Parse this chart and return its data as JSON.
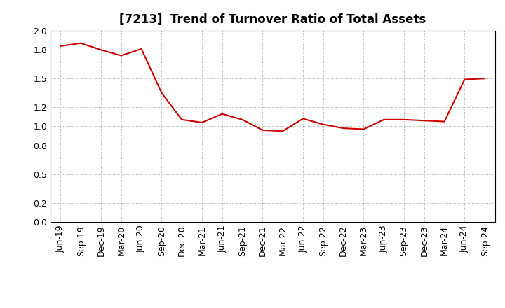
{
  "title": "[7213]  Trend of Turnover Ratio of Total Assets",
  "x_labels": [
    "Jun-19",
    "Sep-19",
    "Dec-19",
    "Mar-20",
    "Jun-20",
    "Sep-20",
    "Dec-20",
    "Mar-21",
    "Jun-21",
    "Sep-21",
    "Dec-21",
    "Mar-22",
    "Jun-22",
    "Sep-22",
    "Dec-22",
    "Mar-23",
    "Jun-23",
    "Sep-23",
    "Dec-23",
    "Mar-24",
    "Jun-24",
    "Sep-24"
  ],
  "y_values": [
    1.84,
    1.87,
    1.8,
    1.74,
    1.81,
    1.35,
    1.07,
    1.04,
    1.13,
    1.07,
    0.96,
    0.95,
    1.08,
    1.02,
    0.98,
    0.97,
    1.07,
    1.07,
    1.06,
    1.05,
    1.49,
    1.5
  ],
  "line_color": "#cc0000",
  "bg_color": "#ffffff",
  "grid_color": "#999999",
  "ylim": [
    0.0,
    2.0
  ],
  "yticks": [
    0.0,
    0.2,
    0.5,
    0.8,
    1.0,
    1.2,
    1.5,
    1.8,
    2.0
  ],
  "title_fontsize": 12,
  "tick_fontsize": 9
}
